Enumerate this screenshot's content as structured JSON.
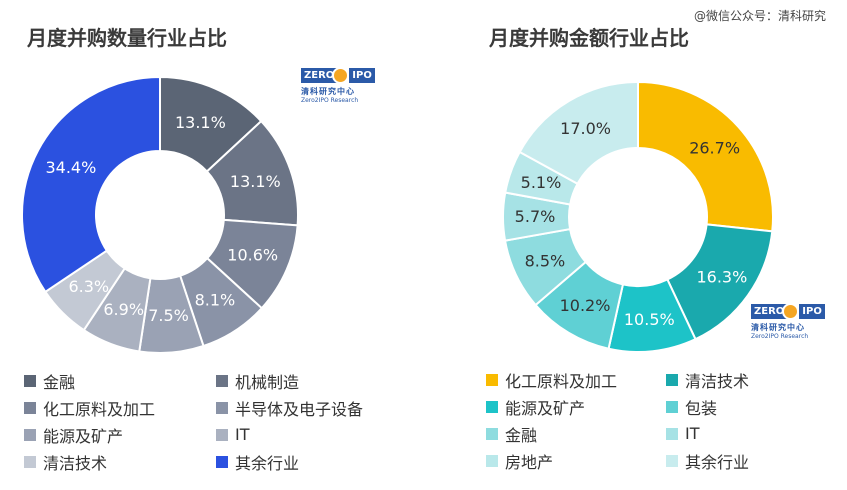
{
  "watermark": "@微信公众号：清科研究",
  "logo": {
    "zero": "ZERO",
    "ipo": "IPO",
    "cn": "清科研究中心",
    "en": "Zero2IPO Research"
  },
  "chart_data": [
    {
      "type": "pie",
      "title": "月度并购数量行业占比",
      "start_angle": 0,
      "direction": "clockwise",
      "legend_position": "bottom",
      "slices": [
        {
          "name": "金融",
          "value": 13.1,
          "label": "13.1%",
          "color": "#5b6575"
        },
        {
          "name": "机械制造",
          "value": 13.1,
          "label": "13.1%",
          "color": "#6b7486"
        },
        {
          "name": "化工原料及加工",
          "value": 10.6,
          "label": "10.6%",
          "color": "#7b8498"
        },
        {
          "name": "半导体及电子设备",
          "value": 8.1,
          "label": "8.1%",
          "color": "#8a93a7"
        },
        {
          "name": "能源及矿产",
          "value": 7.5,
          "label": "7.5%",
          "color": "#9aa2b4"
        },
        {
          "name": "IT",
          "value": 6.9,
          "label": "6.9%",
          "color": "#aab1c0"
        },
        {
          "name": "清洁技术",
          "value": 6.3,
          "label": "6.3%",
          "color": "#c3c9d4"
        },
        {
          "name": "其余行业",
          "value": 34.4,
          "label": "34.4%",
          "color": "#2b51e0"
        }
      ]
    },
    {
      "type": "pie",
      "title": "月度并购金额行业占比",
      "start_angle": 0,
      "direction": "clockwise",
      "legend_position": "bottom",
      "slices": [
        {
          "name": "化工原料及加工",
          "value": 26.7,
          "label": "26.7%",
          "color": "#f9bb00"
        },
        {
          "name": "清洁技术",
          "value": 16.3,
          "label": "16.3%",
          "color": "#1aa9ad"
        },
        {
          "name": "能源及矿产",
          "value": 10.5,
          "label": "10.5%",
          "color": "#1dc3c8"
        },
        {
          "name": "包装",
          "value": 10.2,
          "label": "10.2%",
          "color": "#5fd0d4"
        },
        {
          "name": "金融",
          "value": 8.5,
          "label": "8.5%",
          "color": "#8edcdf"
        },
        {
          "name": "IT",
          "value": 5.7,
          "label": "5.7%",
          "color": "#a6e2e5"
        },
        {
          "name": "房地产",
          "value": 5.1,
          "label": "5.1%",
          "color": "#b9e8ea"
        },
        {
          "name": "其余行业",
          "value": 17.0,
          "label": "17.0%",
          "color": "#c8ecee"
        }
      ]
    }
  ]
}
